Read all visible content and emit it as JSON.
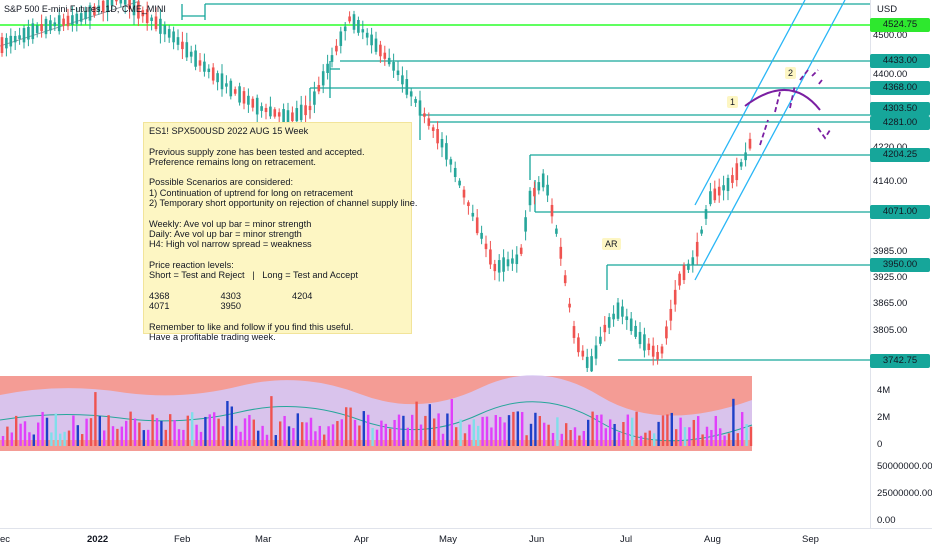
{
  "symbol_title": "S&P 500 E-mini Futures, 1D, CME_MINI",
  "currency": "USD",
  "note": {
    "lines": [
      "ES1! SPX500USD 2022 AUG 15 Week",
      "",
      "Previous supply zone has been tested and accepted.",
      "Preference remains long on retracement.",
      "",
      "Possible Scenarios are considered:",
      "1) Continuation of uptrend for long on retracement",
      "2) Temporary short opportunity on rejection of channel supply line.",
      "",
      "Weekly: Ave vol up bar = minor strength",
      "Daily: Ave vol up bar = minor strength",
      "H4: High vol narrow spread = weakness",
      "",
      "Price reaction levels:",
      "Short = Test and Reject   |   Long = Test and Accept",
      "",
      "4368                    4303                    4204",
      "4071                    3950",
      "",
      "Remember to like and follow if you find this useful.",
      "Have a profitable trading week."
    ]
  },
  "chart_labels": {
    "ar": "AR",
    "one": "1",
    "two": "2"
  },
  "price_axis": {
    "labels": [
      "4500.00",
      "4400.00",
      "4220.00",
      "4140.00",
      "3985.00",
      "3925.00",
      "3865.00",
      "3805.00"
    ],
    "volume_labels": [
      "4M",
      "2M",
      "0"
    ],
    "indicator_labels": [
      "50000000.00",
      "25000000.00",
      "0.00"
    ]
  },
  "price_tags": [
    {
      "text": "4524.75",
      "color": "#2ee82e"
    },
    {
      "text": "4433.00",
      "color": "#16a69a"
    },
    {
      "text": "4368.00",
      "color": "#16a69a"
    },
    {
      "text": "4303.50",
      "color": "#16a69a"
    },
    {
      "text": "4281.00",
      "color": "#16a69a"
    },
    {
      "text": "4204.25",
      "color": "#16a69a"
    },
    {
      "text": "4071.00",
      "color": "#16a69a"
    },
    {
      "text": "3950.00",
      "color": "#16a69a"
    },
    {
      "text": "3742.75",
      "color": "#16a69a"
    }
  ],
  "time_axis": [
    "ec",
    "2022",
    "Feb",
    "Mar",
    "Apr",
    "May",
    "Jun",
    "Jul",
    "Aug",
    "Sep"
  ],
  "colors": {
    "up": "#26a69a",
    "down": "#ef5350",
    "level": "#16a69a",
    "supply": "#00ff00",
    "channel": "#29b6f6",
    "projection": "#7b1fa2"
  }
}
